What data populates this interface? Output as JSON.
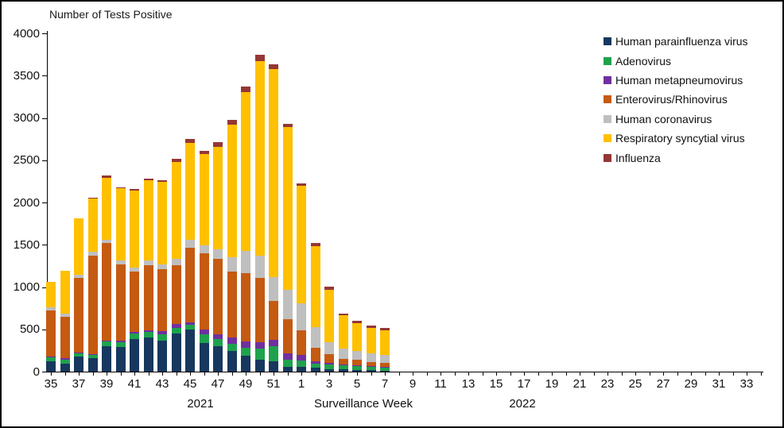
{
  "chart_data": {
    "type": "bar",
    "stacked": true,
    "title": "Number of Tests Positive",
    "xlabel": "Surveillance Week",
    "ylabel": "",
    "ylim": [
      0,
      4000
    ],
    "ytick_interval": 500,
    "ytick_labels": [
      "0",
      "500",
      "1000",
      "1500",
      "2000",
      "2500",
      "3000",
      "3500",
      "4000"
    ],
    "grid": false,
    "legend_position": "top-right",
    "year_labels": [
      "2021",
      "2022"
    ],
    "xtick_labeled_weeks": {
      "2021": [
        35,
        37,
        39,
        41,
        43,
        45,
        47,
        49,
        51
      ],
      "2022": [
        1,
        3,
        5,
        7,
        9,
        11,
        13,
        15,
        17,
        19,
        21,
        23,
        25,
        27,
        29,
        31,
        33
      ]
    },
    "categories": [
      "35",
      "36",
      "37",
      "38",
      "39",
      "40",
      "41",
      "42",
      "43",
      "44",
      "45",
      "46",
      "47",
      "48",
      "49",
      "50",
      "51",
      "52",
      "1",
      "2",
      "3",
      "4",
      "5",
      "6",
      "7",
      "8",
      "9",
      "10",
      "11",
      "12",
      "13",
      "14",
      "15",
      "16",
      "17",
      "18",
      "19",
      "20",
      "21",
      "22",
      "23",
      "24",
      "25",
      "26",
      "27",
      "28",
      "29",
      "30",
      "31",
      "32",
      "33",
      "34"
    ],
    "series": [
      {
        "name": "Human parainfluenza virus",
        "color": "#17375E",
        "values": [
          120,
          95,
          180,
          155,
          305,
          290,
          385,
          400,
          370,
          450,
          500,
          340,
          300,
          245,
          190,
          145,
          125,
          60,
          55,
          45,
          30,
          25,
          20,
          15,
          10,
          0,
          0,
          0,
          0,
          0,
          0,
          0,
          0,
          0,
          0,
          0,
          0,
          0,
          0,
          0,
          0,
          0,
          0,
          0,
          0,
          0,
          0,
          0,
          0,
          0,
          0,
          0
        ]
      },
      {
        "name": "Adenovirus",
        "color": "#1FA24D",
        "values": [
          45,
          50,
          40,
          45,
          55,
          55,
          70,
          70,
          75,
          70,
          55,
          100,
          85,
          85,
          95,
          130,
          175,
          85,
          80,
          50,
          55,
          50,
          45,
          40,
          40,
          0,
          0,
          0,
          0,
          0,
          0,
          0,
          0,
          0,
          0,
          0,
          0,
          0,
          0,
          0,
          0,
          0,
          0,
          0,
          0,
          0,
          0,
          0,
          0,
          0,
          0,
          0
        ]
      },
      {
        "name": "Human metapneumovirus",
        "color": "#7030A0",
        "values": [
          10,
          10,
          10,
          10,
          10,
          20,
          15,
          15,
          30,
          40,
          30,
          55,
          55,
          70,
          70,
          75,
          75,
          70,
          60,
          25,
          20,
          10,
          10,
          10,
          10,
          0,
          0,
          0,
          0,
          0,
          0,
          0,
          0,
          0,
          0,
          0,
          0,
          0,
          0,
          0,
          0,
          0,
          0,
          0,
          0,
          0,
          0,
          0,
          0,
          0,
          0,
          0
        ]
      },
      {
        "name": "Enterovirus/Rhinovirus",
        "color": "#C55A11",
        "values": [
          545,
          495,
          875,
          1165,
          1150,
          905,
          715,
          775,
          735,
          695,
          880,
          900,
          890,
          785,
          810,
          755,
          465,
          405,
          295,
          160,
          105,
          65,
          65,
          50,
          45,
          0,
          0,
          0,
          0,
          0,
          0,
          0,
          0,
          0,
          0,
          0,
          0,
          0,
          0,
          0,
          0,
          0,
          0,
          0,
          0,
          0,
          0,
          0,
          0,
          0,
          0,
          0
        ]
      },
      {
        "name": "Human coronavirus",
        "color": "#BFBFBF",
        "values": [
          40,
          40,
          40,
          45,
          40,
          40,
          45,
          55,
          60,
          80,
          95,
          100,
          120,
          170,
          260,
          265,
          275,
          350,
          320,
          250,
          140,
          120,
          105,
          105,
          95,
          0,
          0,
          0,
          0,
          0,
          0,
          0,
          0,
          0,
          0,
          0,
          0,
          0,
          0,
          0,
          0,
          0,
          0,
          0,
          0,
          0,
          0,
          0,
          0,
          0,
          0,
          0
        ]
      },
      {
        "name": "Respiratory syncytial virus",
        "color": "#FFC000",
        "values": [
          300,
          500,
          665,
          625,
          735,
          855,
          915,
          945,
          975,
          1140,
          1140,
          1080,
          1210,
          1565,
          1885,
          2300,
          2465,
          1925,
          1385,
          950,
          615,
          395,
          325,
          295,
          290,
          0,
          0,
          0,
          0,
          0,
          0,
          0,
          0,
          0,
          0,
          0,
          0,
          0,
          0,
          0,
          0,
          0,
          0,
          0,
          0,
          0,
          0,
          0,
          0,
          0,
          0,
          0
        ]
      },
      {
        "name": "Influenza",
        "color": "#953735",
        "values": [
          0,
          0,
          0,
          15,
          25,
          15,
          15,
          20,
          20,
          40,
          55,
          40,
          50,
          55,
          65,
          80,
          50,
          35,
          35,
          45,
          40,
          25,
          30,
          30,
          30,
          0,
          0,
          0,
          0,
          0,
          0,
          0,
          0,
          0,
          0,
          0,
          0,
          0,
          0,
          0,
          0,
          0,
          0,
          0,
          0,
          0,
          0,
          0,
          0,
          0,
          0,
          0
        ]
      }
    ]
  }
}
